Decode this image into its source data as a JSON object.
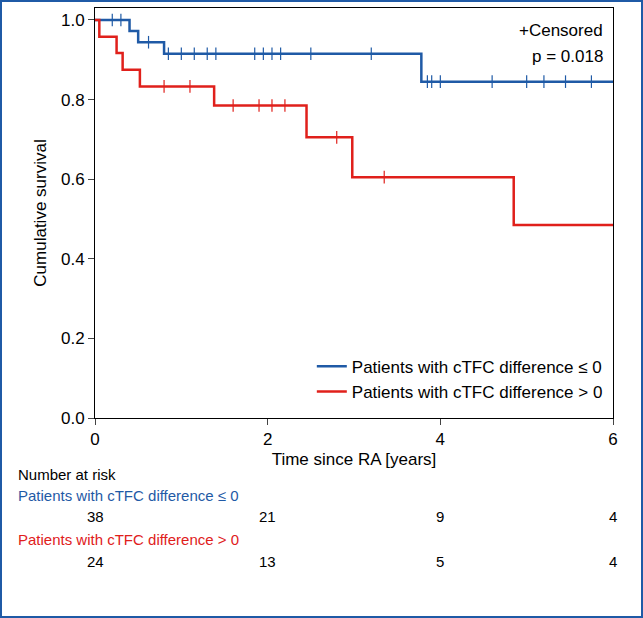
{
  "chart_data": {
    "type": "line",
    "line_style": "step",
    "xlabel": "Time since RA [years]",
    "ylabel": "Cumulative survival",
    "xlim": [
      0,
      6
    ],
    "xticks": [
      0,
      2,
      4,
      6
    ],
    "ylim": [
      0,
      1.03
    ],
    "yticks": [
      {
        "value": 0,
        "label": "0.0"
      },
      {
        "value": 0.2,
        "label": "0.2"
      },
      {
        "value": 0.4,
        "label": "0.4"
      },
      {
        "value": 0.6,
        "label": "0.6"
      },
      {
        "value": 0.8,
        "label": "0.8"
      },
      {
        "value": 1.0,
        "label": "1.0"
      }
    ],
    "grid": false,
    "legend": "lower right",
    "annotations": [
      "+Censored",
      "p = 0.018"
    ],
    "at_risk_title": "Number at risk",
    "at_risk_x": [
      0,
      2,
      4,
      6
    ],
    "series": [
      {
        "name": "Patients with cTFC difference ≤ 0",
        "color": "#1f5aa6",
        "x": [
          0,
          0.4,
          0.5,
          0.8,
          3.78,
          6
        ],
        "values": [
          1.0,
          0.972,
          0.944,
          0.915,
          0.845,
          0.845
        ],
        "censored": {
          "x": [
            0.2,
            0.3,
            0.62,
            0.85,
            1.0,
            1.15,
            1.3,
            1.4,
            1.85,
            1.95,
            2.05,
            2.15,
            2.5,
            3.2,
            3.85,
            3.9,
            4.0,
            4.6,
            5.0,
            5.2,
            5.45,
            5.75
          ],
          "values": [
            1.0,
            1.0,
            0.944,
            0.915,
            0.915,
            0.915,
            0.915,
            0.915,
            0.915,
            0.915,
            0.915,
            0.915,
            0.915,
            0.915,
            0.845,
            0.845,
            0.845,
            0.845,
            0.845,
            0.845,
            0.845,
            0.845
          ]
        },
        "at_risk": [
          38,
          21,
          9,
          4
        ]
      },
      {
        "name": "Patients with cTFC difference > 0",
        "color": "#e0201b",
        "x": [
          0,
          0.05,
          0.25,
          0.32,
          0.52,
          1.38,
          2.45,
          2.98,
          4.85,
          6
        ],
        "values": [
          1.0,
          0.958,
          0.917,
          0.875,
          0.833,
          0.785,
          0.705,
          0.605,
          0.485,
          0.485
        ],
        "censored": {
          "x": [
            0.8,
            1.1,
            1.6,
            1.9,
            2.05,
            2.2,
            2.8,
            3.35
          ],
          "values": [
            0.833,
            0.833,
            0.785,
            0.785,
            0.785,
            0.785,
            0.705,
            0.605
          ]
        },
        "at_risk": [
          24,
          13,
          5,
          4
        ]
      }
    ]
  }
}
